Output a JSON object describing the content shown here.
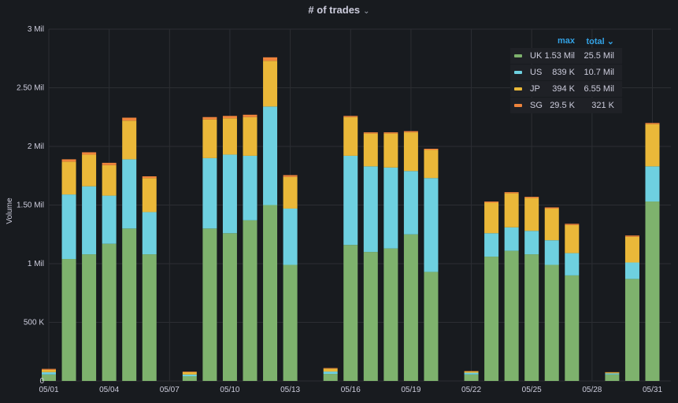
{
  "panel": {
    "title": "# of trades",
    "title_chevron": "⌄"
  },
  "legend": {
    "headers": {
      "max": "max",
      "total": "total",
      "total_chevron": "⌄"
    },
    "rows": [
      {
        "name": "UK",
        "color": "#7eb26d",
        "max": "1.53 Mil",
        "total": "25.5 Mil"
      },
      {
        "name": "US",
        "color": "#6ed0e0",
        "max": "839 K",
        "total": "10.7 Mil"
      },
      {
        "name": "JP",
        "color": "#eab839",
        "max": "394 K",
        "total": "6.55 Mil"
      },
      {
        "name": "SG",
        "color": "#ef843c",
        "max": "29.5 K",
        "total": "321 K"
      }
    ]
  },
  "chart_data": {
    "type": "bar",
    "stacked": true,
    "title": "# of trades",
    "xlabel": "",
    "ylabel": "Volume",
    "ylim": [
      0,
      3000000
    ],
    "grid": true,
    "legend_position": "top-right",
    "y_ticks": [
      {
        "value": 0,
        "label": "0"
      },
      {
        "value": 500000,
        "label": "500 K"
      },
      {
        "value": 1000000,
        "label": "1 Mil"
      },
      {
        "value": 1500000,
        "label": "1.50 Mil"
      },
      {
        "value": 2000000,
        "label": "2 Mil"
      },
      {
        "value": 2500000,
        "label": "2.50 Mil"
      },
      {
        "value": 3000000,
        "label": "3 Mil"
      }
    ],
    "x_ticks": [
      "05/01",
      "05/04",
      "05/07",
      "05/10",
      "05/13",
      "05/16",
      "05/19",
      "05/22",
      "05/25",
      "05/28",
      "05/31"
    ],
    "x_tick_days": [
      1,
      4,
      7,
      10,
      13,
      16,
      19,
      22,
      25,
      28,
      31
    ],
    "days": [
      1,
      2,
      3,
      4,
      5,
      6,
      7,
      8,
      9,
      10,
      11,
      12,
      13,
      14,
      15,
      16,
      17,
      18,
      19,
      20,
      21,
      22,
      23,
      24,
      25,
      26,
      27,
      28,
      29,
      30,
      31
    ],
    "series": [
      {
        "name": "UK",
        "color": "#7eb26d",
        "values": [
          55000,
          1040000,
          1080000,
          1170000,
          1300000,
          1080000,
          0,
          40000,
          1300000,
          1260000,
          1370000,
          1500000,
          990000,
          0,
          60000,
          1160000,
          1100000,
          1130000,
          1250000,
          930000,
          0,
          55000,
          1060000,
          1110000,
          1080000,
          990000,
          900000,
          0,
          55000,
          870000,
          1530000
        ]
      },
      {
        "name": "US",
        "color": "#6ed0e0",
        "values": [
          20000,
          550000,
          580000,
          410000,
          590000,
          360000,
          0,
          15000,
          600000,
          670000,
          550000,
          840000,
          480000,
          0,
          20000,
          760000,
          730000,
          690000,
          540000,
          800000,
          0,
          15000,
          200000,
          200000,
          200000,
          210000,
          190000,
          0,
          10000,
          140000,
          300000
        ]
      },
      {
        "name": "JP",
        "color": "#eab839",
        "values": [
          20000,
          280000,
          270000,
          260000,
          330000,
          290000,
          0,
          20000,
          330000,
          310000,
          330000,
          390000,
          270000,
          0,
          25000,
          330000,
          280000,
          290000,
          330000,
          240000,
          0,
          12000,
          260000,
          290000,
          280000,
          270000,
          240000,
          0,
          8000,
          220000,
          360000
        ]
      },
      {
        "name": "SG",
        "color": "#ef843c",
        "values": [
          8000,
          20000,
          20000,
          20000,
          25000,
          15000,
          0,
          5000,
          20000,
          20000,
          20000,
          29500,
          15000,
          0,
          5000,
          10000,
          10000,
          10000,
          10000,
          10000,
          0,
          3000,
          10000,
          10000,
          10000,
          10000,
          10000,
          0,
          2000,
          10000,
          10000
        ]
      }
    ]
  }
}
